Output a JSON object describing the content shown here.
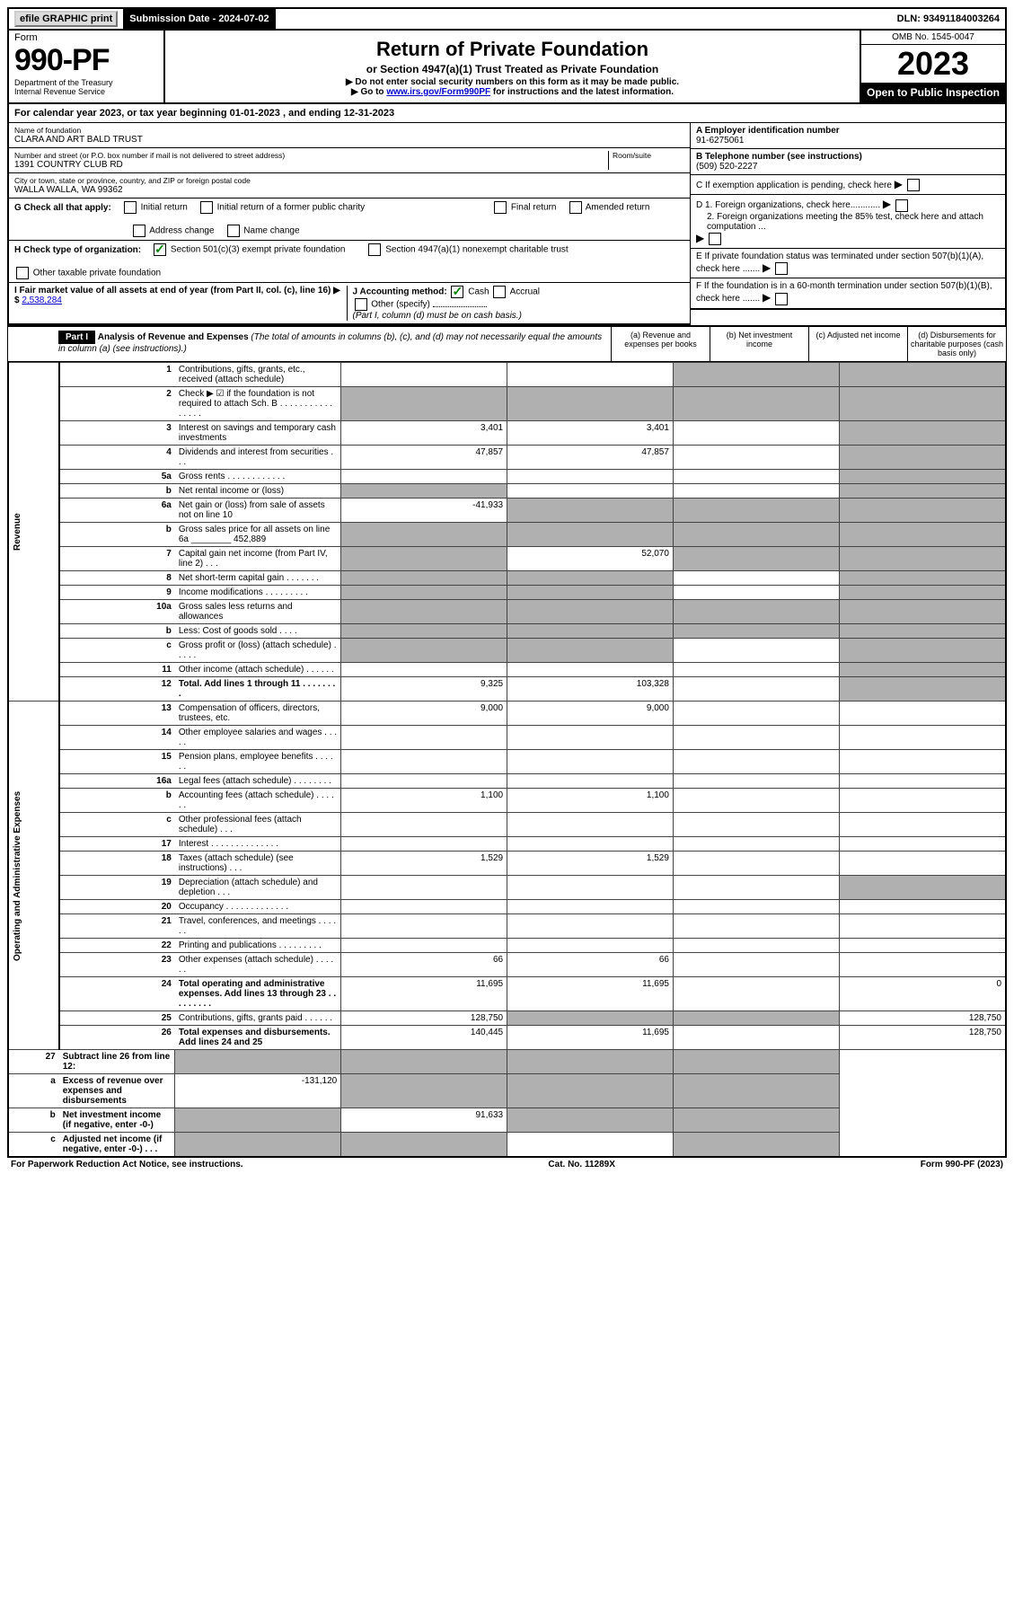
{
  "topbar": {
    "efile": "efile GRAPHIC print",
    "sub_label": "Submission Date - 2024-07-02",
    "dln": "DLN: 93491184003264"
  },
  "header": {
    "form_word": "Form",
    "form_num": "990-PF",
    "dept": "Department of the Treasury",
    "irs": "Internal Revenue Service",
    "title": "Return of Private Foundation",
    "sub": "or Section 4947(a)(1) Trust Treated as Private Foundation",
    "note1": "▶ Do not enter social security numbers on this form as it may be made public.",
    "note2_pre": "▶ Go to ",
    "note2_link": "www.irs.gov/Form990PF",
    "note2_post": " for instructions and the latest information.",
    "omb": "OMB No. 1545-0047",
    "year": "2023",
    "open": "Open to Public Inspection"
  },
  "calyear": "For calendar year 2023, or tax year beginning 01-01-2023              , and ending 12-31-2023",
  "entity": {
    "name_label": "Name of foundation",
    "name": "CLARA AND ART BALD TRUST",
    "addr_label": "Number and street (or P.O. box number if mail is not delivered to street address)",
    "addr": "1391 COUNTRY CLUB RD",
    "room_label": "Room/suite",
    "city_label": "City or town, state or province, country, and ZIP or foreign postal code",
    "city": "WALLA WALLA, WA  99362",
    "ein_label": "A Employer identification number",
    "ein": "91-6275061",
    "tel_label": "B Telephone number (see instructions)",
    "tel": "(509) 520-2227",
    "c_label": "C If exemption application is pending, check here",
    "d1": "D 1. Foreign organizations, check here............",
    "d2": "2. Foreign organizations meeting the 85% test, check here and attach computation ...",
    "e_label": "E  If private foundation status was terminated under section 507(b)(1)(A), check here .......",
    "f_label": "F  If the foundation is in a 60-month termination under section 507(b)(1)(B), check here .......",
    "g_label": "G Check all that apply:",
    "g_opts": [
      "Initial return",
      "Initial return of a former public charity",
      "Final return",
      "Amended return",
      "Address change",
      "Name change"
    ],
    "h_label": "H Check type of organization:",
    "h1": "Section 501(c)(3) exempt private foundation",
    "h2": "Section 4947(a)(1) nonexempt charitable trust",
    "h3": "Other taxable private foundation",
    "i_label": "I Fair market value of all assets at end of year (from Part II, col. (c), line 16) ▶ $",
    "i_val": "2,538,284",
    "j_label": "J Accounting method:",
    "j_cash": "Cash",
    "j_accrual": "Accrual",
    "j_other": "Other (specify)",
    "j_note": "(Part I, column (d) must be on cash basis.)"
  },
  "part1": {
    "label": "Part I",
    "title": "Analysis of Revenue and Expenses",
    "title_note": " (The total of amounts in columns (b), (c), and (d) may not necessarily equal the amounts in column (a) (see instructions).)",
    "col_a": "(a)   Revenue and expenses per books",
    "col_b": "(b)   Net investment income",
    "col_c": "(c)   Adjusted net income",
    "col_d": "(d)   Disbursements for charitable purposes (cash basis only)"
  },
  "sections": {
    "revenue": "Revenue",
    "expenses": "Operating and Administrative Expenses"
  },
  "lines": [
    {
      "n": "1",
      "d": "Contributions, gifts, grants, etc., received (attach schedule)",
      "a": "",
      "b": "",
      "cS": true,
      "dS": true
    },
    {
      "n": "2",
      "d": "Check ▶ ☑ if the foundation is not required to attach Sch. B      .    .    .    .    .    .    .    .    .    .    .    .    .    .    .    .",
      "a": "",
      "b": "",
      "cS": true,
      "dS": true,
      "aS": true,
      "bS": true
    },
    {
      "n": "3",
      "d": "Interest on savings and temporary cash investments",
      "a": "3,401",
      "b": "3,401",
      "dS": true
    },
    {
      "n": "4",
      "d": "Dividends and interest from securities     .    .    .",
      "a": "47,857",
      "b": "47,857",
      "dS": true
    },
    {
      "n": "5a",
      "d": "Gross rents      .    .    .    .    .    .    .    .    .    .    .    .",
      "dS": true
    },
    {
      "n": "b",
      "d": "Net rental income or (loss)",
      "aS": true,
      "dS": true,
      "subline": true
    },
    {
      "n": "6a",
      "d": "Net gain or (loss) from sale of assets not on line 10",
      "a": "-41,933",
      "bS": true,
      "cS": true,
      "dS": true
    },
    {
      "n": "b",
      "d": "Gross sales price for all assets on line 6a ________ 452,889",
      "aS": true,
      "bS": true,
      "cS": true,
      "dS": true,
      "subline": true
    },
    {
      "n": "7",
      "d": "Capital gain net income (from Part IV, line 2)    .    .    .",
      "aS": true,
      "b": "52,070",
      "cS": true,
      "dS": true
    },
    {
      "n": "8",
      "d": "Net short-term capital gain   .    .    .    .    .    .    .",
      "aS": true,
      "bS": true,
      "dS": true
    },
    {
      "n": "9",
      "d": "Income modifications  .    .    .    .    .    .    .    .    .",
      "aS": true,
      "bS": true,
      "dS": true
    },
    {
      "n": "10a",
      "d": "Gross sales less returns and allowances",
      "aS": true,
      "bS": true,
      "cS": true,
      "dS": true,
      "subline": true
    },
    {
      "n": "b",
      "d": "Less: Cost of goods sold     .    .    .    .",
      "aS": true,
      "bS": true,
      "cS": true,
      "dS": true,
      "subline": true
    },
    {
      "n": "c",
      "d": "Gross profit or (loss) (attach schedule)     .    .    .    .    .",
      "aS": true,
      "bS": true,
      "dS": true
    },
    {
      "n": "11",
      "d": "Other income (attach schedule)    .    .    .    .    .    .",
      "dS": true
    },
    {
      "n": "12",
      "d": "Total. Add lines 1 through 11   .    .    .    .    .    .    .    .",
      "a": "9,325",
      "b": "103,328",
      "dS": true,
      "bold": true
    }
  ],
  "exp_lines": [
    {
      "n": "13",
      "d": "Compensation of officers, directors, trustees, etc.",
      "a": "9,000",
      "b": "9,000"
    },
    {
      "n": "14",
      "d": "Other employee salaries and wages    .    .    .    .    ."
    },
    {
      "n": "15",
      "d": "Pension plans, employee benefits  .    .    .    .    .    ."
    },
    {
      "n": "16a",
      "d": "Legal fees (attach schedule)  .    .    .    .    .    .    .    ."
    },
    {
      "n": "b",
      "d": "Accounting fees (attach schedule)  .    .    .    .    .    .",
      "a": "1,100",
      "b": "1,100"
    },
    {
      "n": "c",
      "d": "Other professional fees (attach schedule)    .    .    ."
    },
    {
      "n": "17",
      "d": "Interest  .    .    .    .    .    .    .    .    .    .    .    .    .    ."
    },
    {
      "n": "18",
      "d": "Taxes (attach schedule) (see instructions)      .    .    .",
      "a": "1,529",
      "b": "1,529"
    },
    {
      "n": "19",
      "d": "Depreciation (attach schedule) and depletion    .    .    .",
      "dS": true
    },
    {
      "n": "20",
      "d": "Occupancy  .    .    .    .    .    .    .    .    .    .    .    .    ."
    },
    {
      "n": "21",
      "d": "Travel, conferences, and meetings  .    .    .    .    .    ."
    },
    {
      "n": "22",
      "d": "Printing and publications  .    .    .    .    .    .    .    .    ."
    },
    {
      "n": "23",
      "d": "Other expenses (attach schedule)  .    .    .    .    .    .",
      "a": "66",
      "b": "66"
    },
    {
      "n": "24",
      "d": "Total operating and administrative expenses. Add lines 13 through 23   .    .    .    .    .    .    .    .    .",
      "a": "11,695",
      "b": "11,695",
      "dv": "0",
      "bold": true
    },
    {
      "n": "25",
      "d": "Contributions, gifts, grants paid     .    .    .    .    .    .",
      "a": "128,750",
      "bS": true,
      "cS": true,
      "dv": "128,750"
    },
    {
      "n": "26",
      "d": "Total expenses and disbursements. Add lines 24 and 25",
      "a": "140,445",
      "b": "11,695",
      "dv": "128,750",
      "bold": true
    }
  ],
  "net_lines": [
    {
      "n": "27",
      "d": "Subtract line 26 from line 12:",
      "aS": true,
      "bS": true,
      "cS": true,
      "dS": true,
      "bold": true
    },
    {
      "n": "a",
      "d": "Excess of revenue over expenses and disbursements",
      "a": "-131,120",
      "bS": true,
      "cS": true,
      "dS": true,
      "bold": true
    },
    {
      "n": "b",
      "d": "Net investment income (if negative, enter -0-)",
      "aS": true,
      "b": "91,633",
      "cS": true,
      "dS": true,
      "bold": true
    },
    {
      "n": "c",
      "d": "Adjusted net income (if negative, enter -0-)   .    .    .",
      "aS": true,
      "bS": true,
      "dS": true,
      "bold": true
    }
  ],
  "footer": {
    "left": "For Paperwork Reduction Act Notice, see instructions.",
    "mid": "Cat. No. 11289X",
    "right": "Form 990-PF (2023)"
  }
}
